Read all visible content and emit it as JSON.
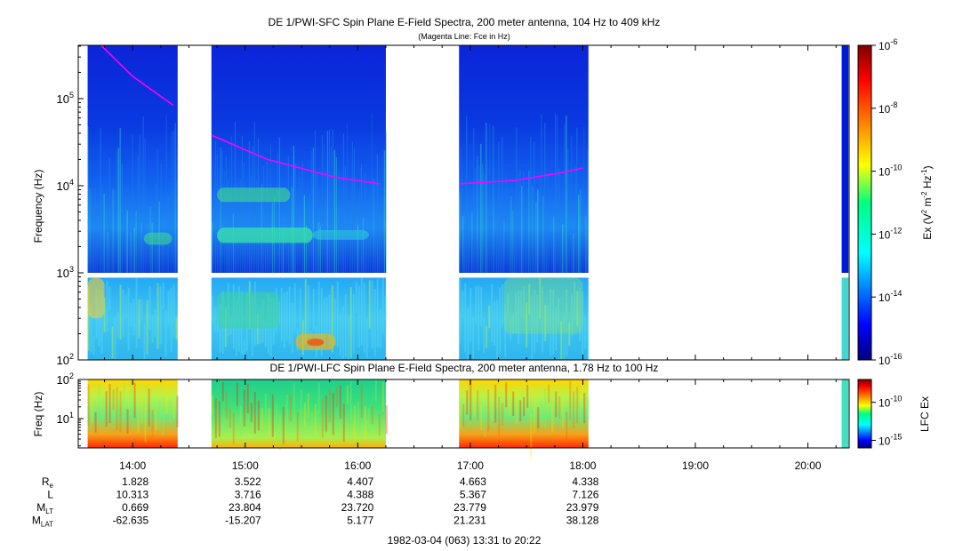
{
  "top_panel": {
    "title": "DE 1/PWI-SFC  Spin Plane E-Field Spectra, 200 meter antenna, 104 Hz to 409 kHz",
    "subtitle": "(Magenta Line: Fce in Hz)",
    "ylabel": "Frequency (Hz)",
    "colorbar_label_main": "Ex (V",
    "colorbar_label_sup1": "2",
    "colorbar_label_mid": " m",
    "colorbar_label_sup2": "-2",
    "colorbar_label_mid2": " Hz",
    "colorbar_label_sup3": "-1",
    "colorbar_label_end": ")"
  },
  "bottom_panel": {
    "title": "DE 1/PWI-LFC  Spin Plane E-Field Spectra, 200 meter antenna, 1.78 Hz to 100 Hz",
    "ylabel": "Freq (Hz)",
    "colorbar_label": "LFC Ex"
  },
  "chart_data": [
    {
      "type": "heatmap",
      "x_unit": "UT hours",
      "xlim": [
        13.5167,
        20.3667
      ],
      "y_scale": "log",
      "ylim": [
        100,
        409000
      ],
      "y_ticks": [
        {
          "value": 100,
          "base": "10",
          "exp": "2"
        },
        {
          "value": 1000,
          "base": "10",
          "exp": "3"
        },
        {
          "value": 10000,
          "base": "10",
          "exp": "4"
        },
        {
          "value": 100000,
          "base": "10",
          "exp": "5"
        }
      ],
      "data_intervals": [
        [
          13.6,
          14.4
        ],
        [
          14.7,
          16.25
        ],
        [
          16.9,
          18.05
        ]
      ],
      "gap_band_hz": [
        880,
        1000
      ],
      "colorbar_scale": "log",
      "colorbar_range": [
        1e-16,
        1e-06
      ],
      "colorbar_ticks": [
        {
          "value": 1e-06,
          "base": "10",
          "exp": "-6"
        },
        {
          "value": 1e-08,
          "base": "10",
          "exp": "-8"
        },
        {
          "value": 1e-10,
          "base": "10",
          "exp": "-10"
        },
        {
          "value": 1e-12,
          "base": "10",
          "exp": "-12"
        },
        {
          "value": 1e-14,
          "base": "10",
          "exp": "-14"
        },
        {
          "value": 1e-16,
          "base": "10",
          "exp": "-16"
        }
      ],
      "fce_line": {
        "color": "#ff00ff",
        "segments": [
          [
            [
              13.72,
              409000
            ],
            [
              14.0,
              180000
            ],
            [
              14.36,
              84000
            ]
          ],
          [
            [
              14.7,
              38000
            ],
            [
              15.2,
              20000
            ],
            [
              15.8,
              12500
            ],
            [
              16.2,
              10500
            ]
          ],
          [
            [
              16.9,
              10500
            ],
            [
              17.4,
              11500
            ],
            [
              17.8,
              14000
            ],
            [
              18.0,
              16000
            ]
          ]
        ]
      }
    },
    {
      "type": "heatmap",
      "x_unit": "UT hours",
      "xlim": [
        13.5167,
        20.3667
      ],
      "y_scale": "log",
      "ylim": [
        1.78,
        100
      ],
      "y_ticks": [
        {
          "value": 10,
          "base": "10",
          "exp": "1"
        },
        {
          "value": 100,
          "base": "10",
          "exp": "2"
        }
      ],
      "data_intervals": [
        [
          13.6,
          14.4
        ],
        [
          14.7,
          16.25
        ],
        [
          16.9,
          18.05
        ]
      ],
      "colorbar_scale": "log",
      "colorbar_range": [
        1e-16,
        1e-07
      ],
      "colorbar_ticks": [
        {
          "value": 1e-10,
          "base": "10",
          "exp": "-10"
        },
        {
          "value": 1e-15,
          "base": "10",
          "exp": "-15"
        }
      ]
    }
  ],
  "x_axis": {
    "ticks": [
      {
        "value": 14.0,
        "label": "14:00"
      },
      {
        "value": 15.0,
        "label": "15:00"
      },
      {
        "value": 16.0,
        "label": "16:00"
      },
      {
        "value": 17.0,
        "label": "17:00"
      },
      {
        "value": 18.0,
        "label": "18:00"
      },
      {
        "value": 19.0,
        "label": "19:00"
      },
      {
        "value": 20.0,
        "label": "20:00"
      }
    ],
    "minor_step": 0.25
  },
  "ephemeris": {
    "rows": [
      {
        "name": "R",
        "sub": "e",
        "values": [
          "1.828",
          "3.522",
          "4.407",
          "4.663",
          "4.338"
        ]
      },
      {
        "name": "L",
        "sub": "",
        "values": [
          "10.313",
          "3.716",
          "4.388",
          "5.367",
          "7.126"
        ]
      },
      {
        "name": "M",
        "sub": "LT",
        "values": [
          "0.669",
          "23.804",
          "23.720",
          "23.779",
          "23.979"
        ]
      },
      {
        "name": "M",
        "sub": "LAT",
        "values": [
          "-62.635",
          "-15.207",
          "5.177",
          "21.231",
          "38.128"
        ]
      }
    ],
    "footer": "1982-03-04 (063) 13:31 to 20:22"
  }
}
